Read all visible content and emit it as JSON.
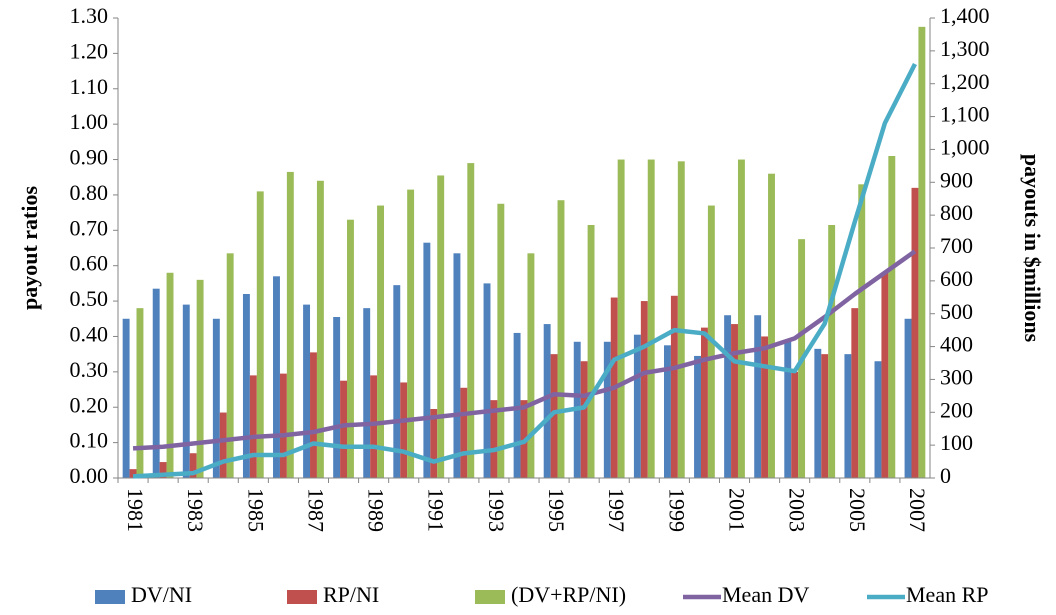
{
  "chart_data": {
    "type": "combo",
    "categories": [
      "1981",
      null,
      "1983",
      null,
      "1985",
      null,
      "1987",
      null,
      "1989",
      null,
      "1991",
      null,
      "1993",
      null,
      "1995",
      null,
      "1997",
      null,
      "1999",
      null,
      "2001",
      null,
      "2003",
      null,
      "2005",
      null,
      "2007"
    ],
    "ylabel": "payout ratios",
    "y2label": "payouts in $millions",
    "ylim": [
      0,
      1.3
    ],
    "yticks": [
      {
        "value": 0,
        "label": "0.00"
      },
      {
        "value": 0.1,
        "label": "0.10"
      },
      {
        "value": 0.2,
        "label": "0.20"
      },
      {
        "value": 0.3,
        "label": "0.30"
      },
      {
        "value": 0.4,
        "label": "0.40"
      },
      {
        "value": 0.5,
        "label": "0.50"
      },
      {
        "value": 0.6,
        "label": "0.60"
      },
      {
        "value": 0.7,
        "label": "0.70"
      },
      {
        "value": 0.8,
        "label": "0.80"
      },
      {
        "value": 0.9,
        "label": "0.90"
      },
      {
        "value": 1.0,
        "label": "1.00"
      },
      {
        "value": 1.1,
        "label": "1.10"
      },
      {
        "value": 1.2,
        "label": "1.20"
      },
      {
        "value": 1.3,
        "label": "1.30"
      }
    ],
    "y2lim": [
      0,
      1400
    ],
    "y2ticks": [
      0,
      100,
      200,
      300,
      400,
      500,
      600,
      700,
      800,
      900,
      {
        "value": 1000,
        "label": "1,000"
      },
      {
        "value": 1100,
        "label": "1,100"
      },
      {
        "value": 1200,
        "label": "1,200"
      },
      {
        "value": 1300,
        "label": "1,300"
      },
      {
        "value": 1400,
        "label": "1,400"
      }
    ],
    "grid": false,
    "legend": "bottom",
    "series": [
      {
        "name": "DV/NI",
        "type": "bar",
        "color": "#4f81bd",
        "values": [
          0.45,
          0.535,
          0.49,
          0.45,
          0.52,
          0.57,
          0.49,
          0.455,
          0.48,
          0.545,
          0.665,
          0.635,
          0.55,
          0.41,
          0.435,
          0.385,
          0.385,
          0.405,
          0.375,
          0.345,
          0.46,
          0.46,
          0.39,
          0.365,
          0.35,
          0.33,
          0.45
        ]
      },
      {
        "name": "RP/NI",
        "type": "bar",
        "color": "#c0504d",
        "values": [
          0.025,
          0.045,
          0.07,
          0.185,
          0.29,
          0.295,
          0.355,
          0.275,
          0.29,
          0.27,
          0.195,
          0.255,
          0.22,
          0.22,
          0.35,
          0.33,
          0.51,
          0.5,
          0.515,
          0.425,
          0.435,
          0.4,
          0.3,
          0.35,
          0.48,
          0.58,
          0.82
        ]
      },
      {
        "name": "(DV+RP/NI)",
        "type": "bar",
        "color": "#9bbb59",
        "values": [
          0.48,
          0.58,
          0.56,
          0.635,
          0.81,
          0.865,
          0.84,
          0.73,
          0.77,
          0.815,
          0.855,
          0.89,
          0.775,
          0.635,
          0.785,
          0.715,
          0.9,
          0.9,
          0.895,
          0.77,
          0.9,
          0.86,
          0.675,
          0.715,
          0.83,
          0.91,
          1.275
        ]
      },
      {
        "name": "Mean DV",
        "type": "line",
        "axis": "y2",
        "color": "#8064a2",
        "values": [
          90,
          95,
          105,
          115,
          125,
          130,
          140,
          160,
          165,
          175,
          185,
          195,
          205,
          215,
          255,
          250,
          275,
          320,
          335,
          360,
          380,
          395,
          425,
          490,
          560,
          625,
          690
        ]
      },
      {
        "name": "Mean RP",
        "type": "line",
        "axis": "y2",
        "color": "#4bacc6",
        "values": [
          5,
          10,
          15,
          50,
          70,
          70,
          105,
          95,
          95,
          80,
          50,
          75,
          85,
          110,
          200,
          215,
          360,
          400,
          450,
          440,
          355,
          340,
          325,
          470,
          780,
          1080,
          1260
        ]
      }
    ]
  }
}
